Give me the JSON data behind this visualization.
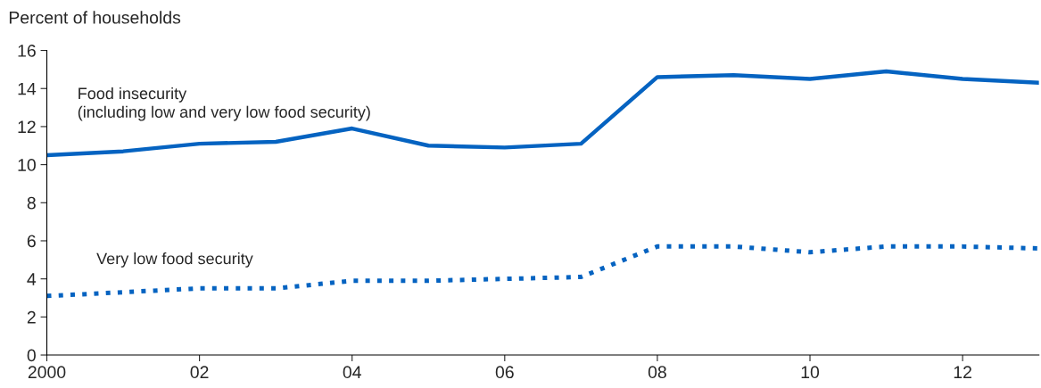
{
  "chart_data": {
    "type": "line",
    "ylabel": "Percent of households",
    "x": [
      2000,
      2001,
      2002,
      2003,
      2004,
      2005,
      2006,
      2007,
      2008,
      2009,
      2010,
      2011,
      2012,
      2013
    ],
    "series": [
      {
        "name": "Food insecurity\n(including low and very low food security)",
        "color": "#0563c1",
        "line_style": "solid",
        "values": [
          10.5,
          10.7,
          11.1,
          11.2,
          11.9,
          11.0,
          10.9,
          11.1,
          14.6,
          14.7,
          14.5,
          14.9,
          14.5,
          14.3
        ]
      },
      {
        "name": "Very low food security",
        "color": "#0563c1",
        "line_style": "dotted",
        "values": [
          3.1,
          3.3,
          3.5,
          3.5,
          3.9,
          3.9,
          4.0,
          4.1,
          5.7,
          5.7,
          5.4,
          5.7,
          5.7,
          5.6
        ]
      }
    ],
    "xlim": [
      2000,
      2013
    ],
    "xticks": [
      2000,
      {
        "value": 2002,
        "label": "02"
      },
      {
        "value": 2004,
        "label": "04"
      },
      {
        "value": 2006,
        "label": "06"
      },
      {
        "value": 2008,
        "label": "08"
      },
      {
        "value": 2010,
        "label": "10"
      },
      {
        "value": 2012,
        "label": "12"
      }
    ],
    "ylim": [
      0,
      16
    ],
    "yticks": [
      0,
      2,
      4,
      6,
      8,
      10,
      12,
      14,
      16
    ],
    "grid": false,
    "legend": false,
    "marker": "none"
  }
}
